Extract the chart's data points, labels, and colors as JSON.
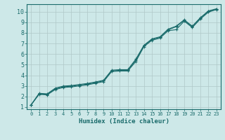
{
  "title": "",
  "xlabel": "Humidex (Indice chaleur)",
  "ylabel": "",
  "bg_color": "#cde8e8",
  "grid_color": "#b0c8c8",
  "line_color": "#1a6b6b",
  "xlim": [
    -0.5,
    23.5
  ],
  "ylim": [
    0.8,
    10.7
  ],
  "xticks": [
    0,
    1,
    2,
    3,
    4,
    5,
    6,
    7,
    8,
    9,
    10,
    11,
    12,
    13,
    14,
    15,
    16,
    17,
    18,
    19,
    20,
    21,
    22,
    23
  ],
  "yticks": [
    1,
    2,
    3,
    4,
    5,
    6,
    7,
    8,
    9,
    10
  ],
  "series1": [
    1.2,
    2.2,
    2.15,
    2.65,
    2.85,
    2.9,
    3.0,
    3.1,
    3.25,
    3.4,
    4.35,
    4.4,
    4.4,
    5.3,
    6.7,
    7.3,
    7.5,
    8.2,
    8.3,
    9.1,
    8.5,
    9.3,
    9.95,
    10.2
  ],
  "series2": [
    1.2,
    2.25,
    2.2,
    2.72,
    2.92,
    2.97,
    3.07,
    3.17,
    3.3,
    3.48,
    4.42,
    4.47,
    4.47,
    5.42,
    6.78,
    7.38,
    7.58,
    8.28,
    8.58,
    9.18,
    8.58,
    9.38,
    10.02,
    10.22
  ],
  "series3": [
    1.2,
    2.3,
    2.25,
    2.78,
    2.98,
    3.03,
    3.13,
    3.23,
    3.37,
    3.53,
    4.48,
    4.53,
    4.53,
    5.52,
    6.83,
    7.43,
    7.63,
    8.35,
    8.63,
    9.23,
    8.63,
    9.43,
    10.07,
    10.27
  ]
}
